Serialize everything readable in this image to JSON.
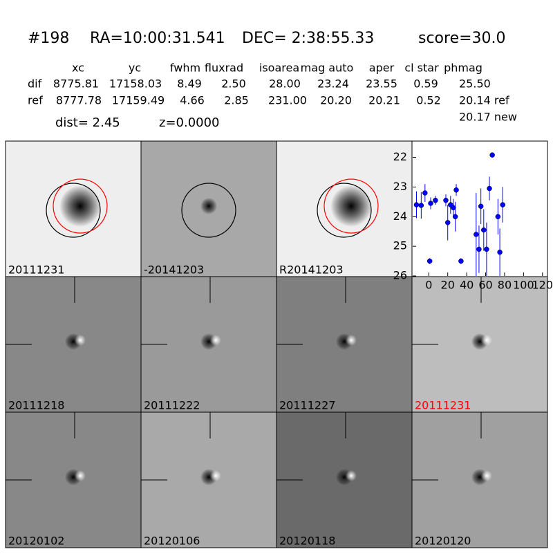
{
  "header": {
    "id": "#198",
    "ra": "RA=10:00:31.541",
    "dec": "DEC= 2:38:55.33",
    "score": "score=30.0"
  },
  "table": {
    "columns": [
      "xc",
      "yc",
      "fwhm",
      "fluxrad",
      "isoarea",
      "mag auto",
      "aper",
      "cl star",
      "phmag"
    ],
    "rows": [
      [
        "dif",
        "8775.81",
        "17158.03",
        "8.49",
        "2.50",
        "28.00",
        "23.24",
        "23.55",
        "0.59",
        "25.50"
      ],
      [
        "ref",
        "8777.78",
        "17159.49",
        "4.66",
        "2.85",
        "231.00",
        "20.20",
        "20.21",
        "0.52",
        "20.14 ref"
      ]
    ],
    "extra": "20.17 new",
    "dist": "dist=  2.45",
    "z": "z=0.0000"
  },
  "panels": [
    "20111231",
    "-20141203",
    "R20141203",
    "20111218",
    "20111222",
    "20111227",
    "20111231",
    "20120102",
    "20120106",
    "20120118",
    "20120120"
  ],
  "chart_data": {
    "type": "scatter",
    "invert_y": true,
    "x": [
      -13,
      -8,
      -4,
      1,
      2,
      7,
      18,
      20,
      23,
      26,
      28,
      29,
      34,
      50,
      53,
      55,
      58,
      61,
      64,
      67,
      73,
      75,
      78
    ],
    "series": [
      {
        "color": "#0000ff",
        "values": [
          23.6,
          23.62,
          23.2,
          25.5,
          23.55,
          23.45,
          23.45,
          24.2,
          23.6,
          23.7,
          24.0,
          23.1,
          25.5,
          24.6,
          25.1,
          23.65,
          24.45,
          25.1,
          23.05,
          21.92,
          24.0,
          25.2,
          23.6
        ],
        "errors": [
          0.45,
          0.45,
          0.3,
          0.1,
          0.2,
          0.15,
          0.2,
          0.6,
          0.3,
          0.3,
          0.5,
          0.2,
          0.1,
          1.4,
          0.8,
          0.6,
          0.7,
          0.9,
          0.4,
          0.08,
          0.6,
          0.8,
          0.6
        ]
      }
    ],
    "xlim": [
      -17,
      126
    ],
    "ylim": [
      26,
      21.45
    ],
    "xticks": [
      0,
      20,
      40,
      60,
      80,
      100,
      120
    ],
    "yticks": [
      22,
      23,
      24,
      25,
      26
    ]
  }
}
